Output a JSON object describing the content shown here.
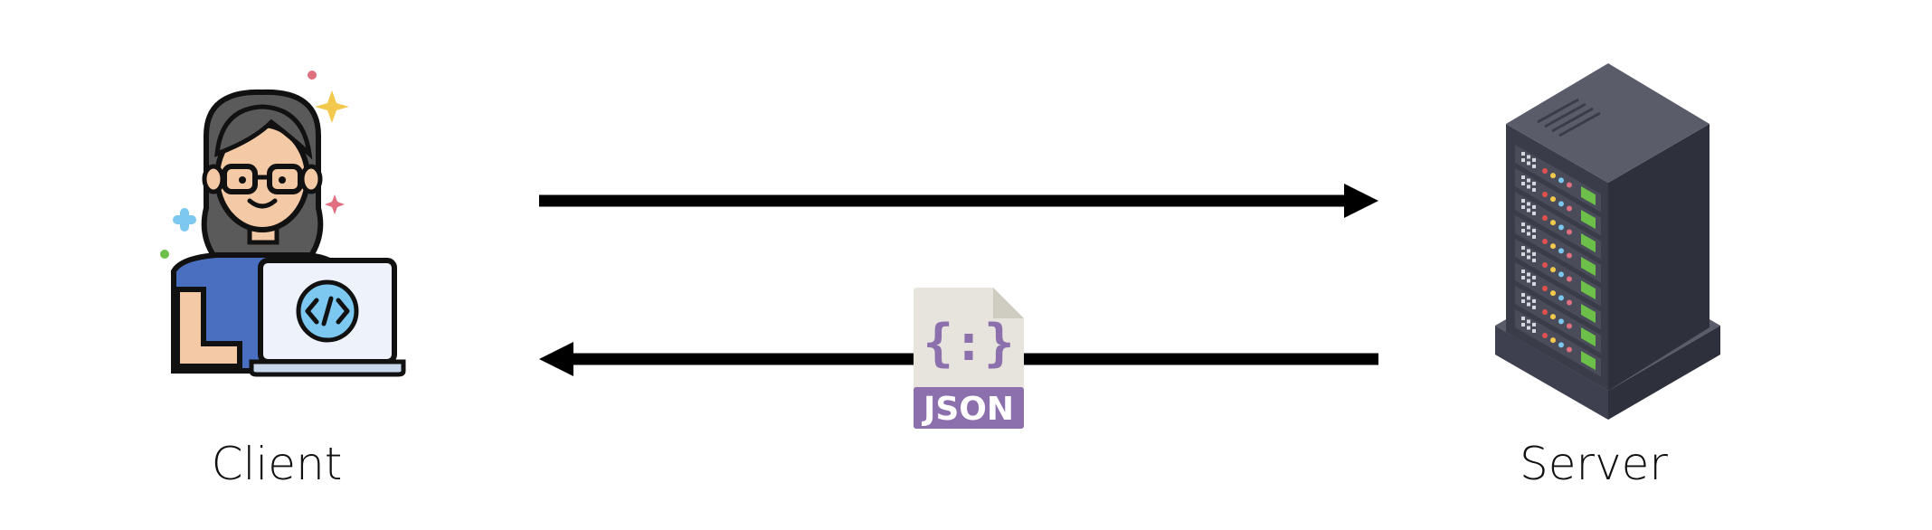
{
  "nodes": {
    "client": {
      "label": "Client"
    },
    "server": {
      "label": "Server"
    }
  },
  "edges": [
    {
      "from": "client",
      "to": "server",
      "label": ""
    },
    {
      "from": "server",
      "to": "client",
      "label": "JSON"
    }
  ],
  "payload": {
    "label": "JSON",
    "icon": "json-file-icon",
    "glyph": "{:}"
  },
  "icons": {
    "client": "developer-with-laptop-icon",
    "server": "server-rack-icon"
  },
  "colors": {
    "arrow": "#000000",
    "json_accent": "#8c6fad",
    "json_paper": "#e6e4dc",
    "server_body": "#4a4c5a",
    "shirt": "#4a6fc0",
    "led_green": "#6cc04a"
  }
}
